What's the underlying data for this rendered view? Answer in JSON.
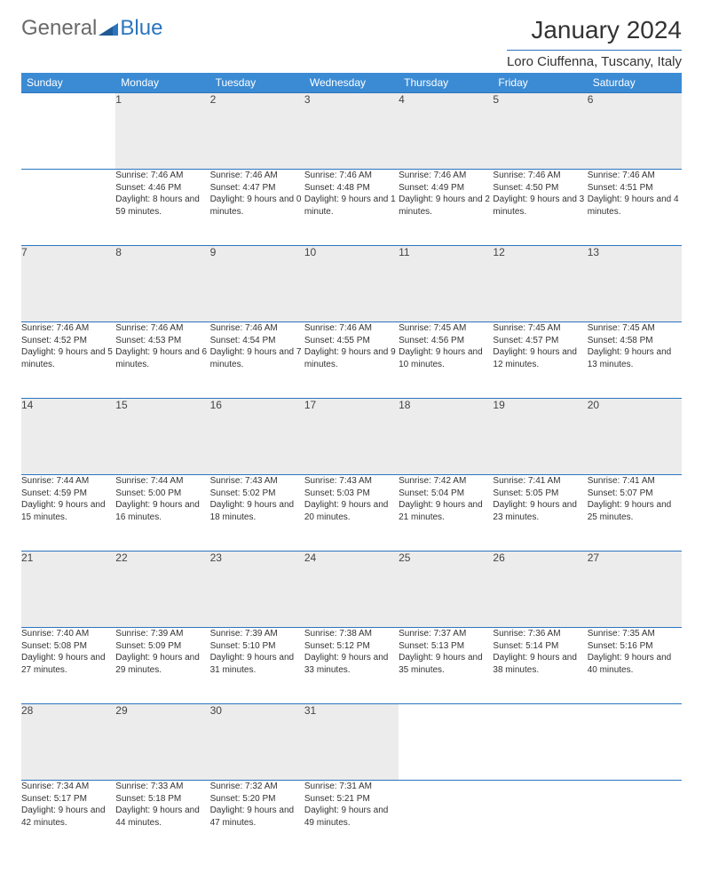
{
  "brand": {
    "part1": "General",
    "part2": "Blue"
  },
  "title": "January 2024",
  "location": "Loro Ciuffenna, Tuscany, Italy",
  "colors": {
    "header_bg": "#3b8bd4",
    "header_text": "#ffffff",
    "rule": "#2b75c0",
    "daynum_bg": "#ececec",
    "text": "#333333",
    "logo_gray": "#6a6a6a",
    "logo_blue": "#2b75c0"
  },
  "days_of_week": [
    "Sunday",
    "Monday",
    "Tuesday",
    "Wednesday",
    "Thursday",
    "Friday",
    "Saturday"
  ],
  "weeks": [
    {
      "nums": [
        "",
        "1",
        "2",
        "3",
        "4",
        "5",
        "6"
      ],
      "cells": [
        {
          "sr": "",
          "ss": "",
          "dl": ""
        },
        {
          "sr": "Sunrise: 7:46 AM",
          "ss": "Sunset: 4:46 PM",
          "dl": "Daylight: 8 hours and 59 minutes."
        },
        {
          "sr": "Sunrise: 7:46 AM",
          "ss": "Sunset: 4:47 PM",
          "dl": "Daylight: 9 hours and 0 minutes."
        },
        {
          "sr": "Sunrise: 7:46 AM",
          "ss": "Sunset: 4:48 PM",
          "dl": "Daylight: 9 hours and 1 minute."
        },
        {
          "sr": "Sunrise: 7:46 AM",
          "ss": "Sunset: 4:49 PM",
          "dl": "Daylight: 9 hours and 2 minutes."
        },
        {
          "sr": "Sunrise: 7:46 AM",
          "ss": "Sunset: 4:50 PM",
          "dl": "Daylight: 9 hours and 3 minutes."
        },
        {
          "sr": "Sunrise: 7:46 AM",
          "ss": "Sunset: 4:51 PM",
          "dl": "Daylight: 9 hours and 4 minutes."
        }
      ]
    },
    {
      "nums": [
        "7",
        "8",
        "9",
        "10",
        "11",
        "12",
        "13"
      ],
      "cells": [
        {
          "sr": "Sunrise: 7:46 AM",
          "ss": "Sunset: 4:52 PM",
          "dl": "Daylight: 9 hours and 5 minutes."
        },
        {
          "sr": "Sunrise: 7:46 AM",
          "ss": "Sunset: 4:53 PM",
          "dl": "Daylight: 9 hours and 6 minutes."
        },
        {
          "sr": "Sunrise: 7:46 AM",
          "ss": "Sunset: 4:54 PM",
          "dl": "Daylight: 9 hours and 7 minutes."
        },
        {
          "sr": "Sunrise: 7:46 AM",
          "ss": "Sunset: 4:55 PM",
          "dl": "Daylight: 9 hours and 9 minutes."
        },
        {
          "sr": "Sunrise: 7:45 AM",
          "ss": "Sunset: 4:56 PM",
          "dl": "Daylight: 9 hours and 10 minutes."
        },
        {
          "sr": "Sunrise: 7:45 AM",
          "ss": "Sunset: 4:57 PM",
          "dl": "Daylight: 9 hours and 12 minutes."
        },
        {
          "sr": "Sunrise: 7:45 AM",
          "ss": "Sunset: 4:58 PM",
          "dl": "Daylight: 9 hours and 13 minutes."
        }
      ]
    },
    {
      "nums": [
        "14",
        "15",
        "16",
        "17",
        "18",
        "19",
        "20"
      ],
      "cells": [
        {
          "sr": "Sunrise: 7:44 AM",
          "ss": "Sunset: 4:59 PM",
          "dl": "Daylight: 9 hours and 15 minutes."
        },
        {
          "sr": "Sunrise: 7:44 AM",
          "ss": "Sunset: 5:00 PM",
          "dl": "Daylight: 9 hours and 16 minutes."
        },
        {
          "sr": "Sunrise: 7:43 AM",
          "ss": "Sunset: 5:02 PM",
          "dl": "Daylight: 9 hours and 18 minutes."
        },
        {
          "sr": "Sunrise: 7:43 AM",
          "ss": "Sunset: 5:03 PM",
          "dl": "Daylight: 9 hours and 20 minutes."
        },
        {
          "sr": "Sunrise: 7:42 AM",
          "ss": "Sunset: 5:04 PM",
          "dl": "Daylight: 9 hours and 21 minutes."
        },
        {
          "sr": "Sunrise: 7:41 AM",
          "ss": "Sunset: 5:05 PM",
          "dl": "Daylight: 9 hours and 23 minutes."
        },
        {
          "sr": "Sunrise: 7:41 AM",
          "ss": "Sunset: 5:07 PM",
          "dl": "Daylight: 9 hours and 25 minutes."
        }
      ]
    },
    {
      "nums": [
        "21",
        "22",
        "23",
        "24",
        "25",
        "26",
        "27"
      ],
      "cells": [
        {
          "sr": "Sunrise: 7:40 AM",
          "ss": "Sunset: 5:08 PM",
          "dl": "Daylight: 9 hours and 27 minutes."
        },
        {
          "sr": "Sunrise: 7:39 AM",
          "ss": "Sunset: 5:09 PM",
          "dl": "Daylight: 9 hours and 29 minutes."
        },
        {
          "sr": "Sunrise: 7:39 AM",
          "ss": "Sunset: 5:10 PM",
          "dl": "Daylight: 9 hours and 31 minutes."
        },
        {
          "sr": "Sunrise: 7:38 AM",
          "ss": "Sunset: 5:12 PM",
          "dl": "Daylight: 9 hours and 33 minutes."
        },
        {
          "sr": "Sunrise: 7:37 AM",
          "ss": "Sunset: 5:13 PM",
          "dl": "Daylight: 9 hours and 35 minutes."
        },
        {
          "sr": "Sunrise: 7:36 AM",
          "ss": "Sunset: 5:14 PM",
          "dl": "Daylight: 9 hours and 38 minutes."
        },
        {
          "sr": "Sunrise: 7:35 AM",
          "ss": "Sunset: 5:16 PM",
          "dl": "Daylight: 9 hours and 40 minutes."
        }
      ]
    },
    {
      "nums": [
        "28",
        "29",
        "30",
        "31",
        "",
        "",
        ""
      ],
      "cells": [
        {
          "sr": "Sunrise: 7:34 AM",
          "ss": "Sunset: 5:17 PM",
          "dl": "Daylight: 9 hours and 42 minutes."
        },
        {
          "sr": "Sunrise: 7:33 AM",
          "ss": "Sunset: 5:18 PM",
          "dl": "Daylight: 9 hours and 44 minutes."
        },
        {
          "sr": "Sunrise: 7:32 AM",
          "ss": "Sunset: 5:20 PM",
          "dl": "Daylight: 9 hours and 47 minutes."
        },
        {
          "sr": "Sunrise: 7:31 AM",
          "ss": "Sunset: 5:21 PM",
          "dl": "Daylight: 9 hours and 49 minutes."
        },
        {
          "sr": "",
          "ss": "",
          "dl": ""
        },
        {
          "sr": "",
          "ss": "",
          "dl": ""
        },
        {
          "sr": "",
          "ss": "",
          "dl": ""
        }
      ]
    }
  ]
}
